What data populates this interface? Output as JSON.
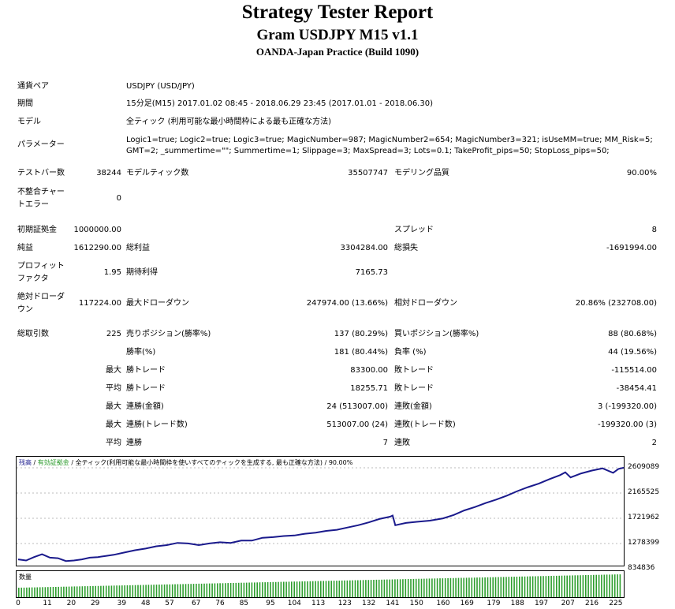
{
  "header": {
    "title": "Strategy Tester Report",
    "subtitle": "Gram USDJPY M15 v1.1",
    "server": "OANDA-Japan Practice (Build 1090)"
  },
  "info": {
    "pair_label": "通貨ペア",
    "pair_value": "USDJPY (USD/JPY)",
    "period_label": "期間",
    "period_value": "15分足(M15) 2017.01.02 08:45 - 2018.06.29 23:45 (2017.01.01 - 2018.06.30)",
    "model_label": "モデル",
    "model_value": "全ティック (利用可能な最小時間枠による最も正確な方法)",
    "params_label": "パラメーター",
    "params_line1": "Logic1=true; Logic2=true; Logic3=true; MagicNumber=987; MagicNumber2=654; MagicNumber3=321; isUseMM=true; MM_Risk=5;",
    "params_line2": "GMT=2; _summertime=\"\"; Summertime=1; Slippage=3; MaxSpread=3; Lots=0.1; TakeProfit_pips=50; StopLoss_pips=50;"
  },
  "stats": {
    "bars_label": "テストバー数",
    "bars_value": "38244",
    "ticks_label": "モデルティック数",
    "ticks_value": "35507747",
    "quality_label": "モデリング品質",
    "quality_value": "90.00%",
    "mismatch_label1": "不整合チャー",
    "mismatch_label2": "トエラー",
    "mismatch_value": "0",
    "deposit_label": "初期証拠金",
    "deposit_value": "1000000.00",
    "spread_label": "スプレッド",
    "spread_value": "8",
    "net_label": "純益",
    "net_value": "1612290.00",
    "gross_profit_label": "総利益",
    "gross_profit_value": "3304284.00",
    "gross_loss_label": "総損失",
    "gross_loss_value": "-1691994.00",
    "pf_label1": "プロフィット",
    "pf_label2": "ファクタ",
    "pf_value": "1.95",
    "expected_label": "期待利得",
    "expected_value": "7165.73",
    "abs_dd_label1": "絶対ドローダ",
    "abs_dd_label2": "ウン",
    "abs_dd_value": "117224.00",
    "max_dd_label": "最大ドローダウン",
    "max_dd_value": "247974.00 (13.66%)",
    "rel_dd_label": "相対ドローダウン",
    "rel_dd_value": "20.86% (232708.00)",
    "total_trades_label": "総取引数",
    "total_trades_value": "225",
    "short_label": "売りポジション(勝率%)",
    "short_value": "137 (80.29%)",
    "long_label": "買いポジション(勝率%)",
    "long_value": "88 (80.68%)",
    "win_rate_label": "勝率(%)",
    "win_rate_value": "181 (80.44%)",
    "loss_rate_label": "負率 (%)",
    "loss_rate_value": "44 (19.56%)",
    "max_prefix": "最大",
    "avg_prefix": "平均",
    "largest_win_label": "勝トレード",
    "largest_win_value": "83300.00",
    "largest_loss_label": "敗トレード",
    "largest_loss_value": "-115514.00",
    "avg_win_label": "勝トレード",
    "avg_win_value": "18255.71",
    "avg_loss_label": "敗トレード",
    "avg_loss_value": "-38454.41",
    "max_consec_wins_label": "連勝(金額)",
    "max_consec_wins_value": "24 (513007.00)",
    "max_consec_losses_label": "連敗(金額)",
    "max_consec_losses_value": "3 (-199320.00)",
    "max_consec_profit_label": "連勝(トレード数)",
    "max_consec_profit_value": "513007.00 (24)",
    "max_consec_loss_label": "連敗(トレード数)",
    "max_consec_loss_value": "-199320.00 (3)",
    "avg_consec_wins_label": "連勝",
    "avg_consec_wins_value": "7",
    "avg_consec_losses_label": "連敗",
    "avg_consec_losses_value": "2"
  },
  "chart": {
    "legend_balance": "残高",
    "legend_sep1": " / ",
    "legend_equity": "有効証拠金",
    "legend_rest": " / 全ティック(利用可能な最小時間枠を使いすべてのティックを生成する, 最も正確な方法) / 90.00%",
    "volume_label": "数量",
    "balance_color": "#1a1a8c",
    "equity_color": "#2a9a2a",
    "volume_color": "#2e9e2e"
  },
  "chart_data": {
    "type": "line",
    "y_ticks": [
      "2609089",
      "2165525",
      "1721962",
      "1278399",
      "834836"
    ],
    "ylim": [
      834836,
      2609089
    ],
    "x_ticks": [
      "0",
      "11",
      "20",
      "29",
      "39",
      "48",
      "57",
      "67",
      "76",
      "85",
      "95",
      "104",
      "113",
      "123",
      "132",
      "141",
      "150",
      "160",
      "169",
      "179",
      "188",
      "197",
      "207",
      "216",
      "225"
    ],
    "xlim": [
      0,
      228
    ],
    "series": [
      {
        "x": [
          0,
          3,
          6,
          9,
          12,
          15,
          18,
          21,
          24,
          27,
          30,
          33,
          36,
          40,
          44,
          48,
          52,
          56,
          60,
          64,
          68,
          72,
          76,
          80,
          84,
          88,
          92,
          96,
          100,
          104,
          108,
          112,
          116,
          120,
          124,
          128,
          132,
          136,
          140,
          141,
          142,
          146,
          150,
          155,
          160,
          164,
          168,
          172,
          176,
          180,
          184,
          188,
          192,
          196,
          200,
          204,
          206,
          208,
          212,
          216,
          220,
          224,
          226,
          228
        ],
        "y": [
          1000000,
          980000,
          1040000,
          1090000,
          1030000,
          1020000,
          970000,
          980000,
          1000000,
          1030000,
          1040000,
          1060000,
          1080000,
          1120000,
          1160000,
          1190000,
          1230000,
          1250000,
          1290000,
          1280000,
          1250000,
          1280000,
          1300000,
          1290000,
          1330000,
          1330000,
          1380000,
          1390000,
          1410000,
          1420000,
          1450000,
          1470000,
          1500000,
          1520000,
          1560000,
          1600000,
          1650000,
          1710000,
          1750000,
          1770000,
          1600000,
          1640000,
          1660000,
          1680000,
          1720000,
          1780000,
          1860000,
          1920000,
          1990000,
          2050000,
          2120000,
          2200000,
          2270000,
          2330000,
          2410000,
          2480000,
          2530000,
          2440000,
          2510000,
          2560000,
          2600000,
          2520000,
          2590000,
          2612290
        ]
      }
    ]
  }
}
